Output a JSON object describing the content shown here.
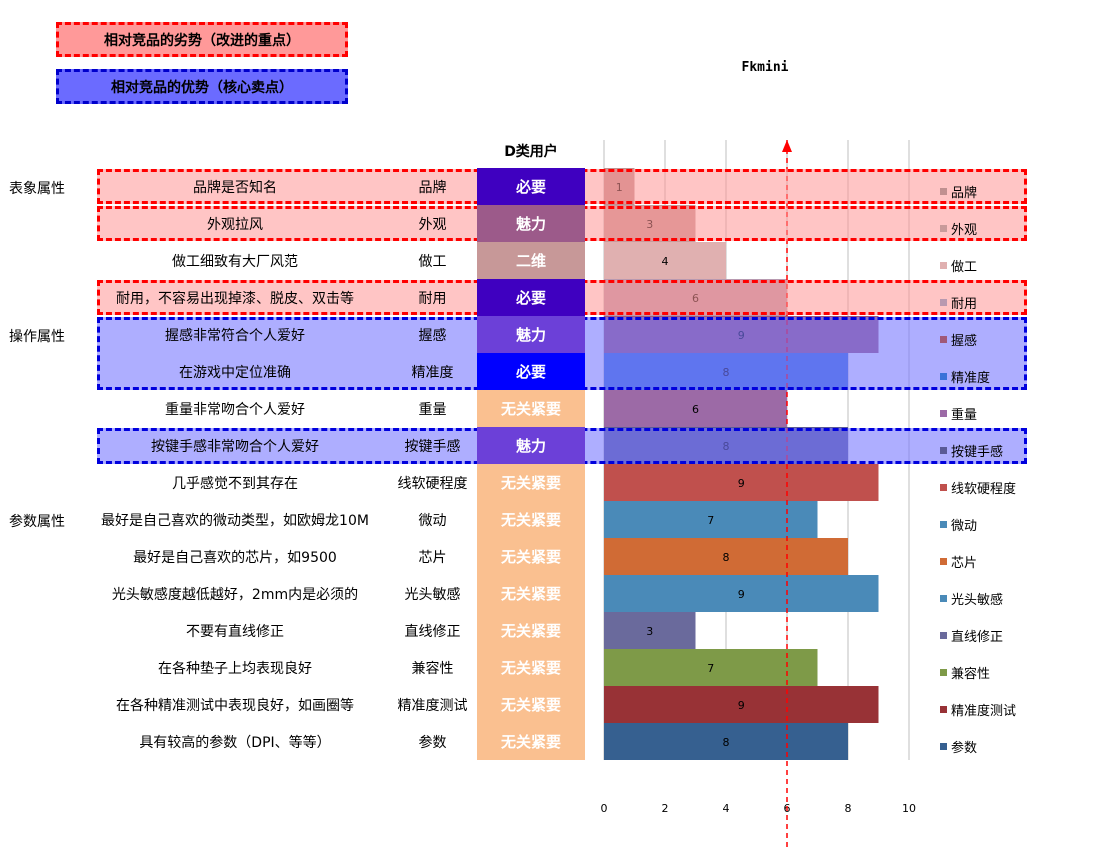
{
  "legend_boxes": {
    "weakness": "相对竞品的劣势（改进的重点）",
    "strength": "相对竞品的优势（核心卖点）"
  },
  "column_header": "D类用户",
  "categories_groups": [
    {
      "label": "表象属性",
      "row": 0
    },
    {
      "label": "操作属性",
      "row": 4
    },
    {
      "label": "参数属性",
      "row": 9
    }
  ],
  "rows": [
    {
      "desc": "品牌是否知名",
      "attr": "品牌",
      "kano": "必要",
      "kano_color": "#3f00c0"
    },
    {
      "desc": "外观拉风",
      "attr": "外观",
      "kano": "魅力",
      "kano_color": "#9c5a8a"
    },
    {
      "desc": "做工细致有大厂风范",
      "attr": "做工",
      "kano": "二维",
      "kano_color": "#c79898"
    },
    {
      "desc": "耐用，不容易出现掉漆、脱皮、双击等",
      "attr": "耐用",
      "kano": "必要",
      "kano_color": "#3f00c0"
    },
    {
      "desc": "握感非常符合个人爱好",
      "attr": "握感",
      "kano": "魅力",
      "kano_color": "#6c40d8"
    },
    {
      "desc": "在游戏中定位准确",
      "attr": "精准度",
      "kano": "必要",
      "kano_color": "#0000ff"
    },
    {
      "desc": "重量非常吻合个人爱好",
      "attr": "重量",
      "kano": "无关紧要",
      "kano_color": "#fac090"
    },
    {
      "desc": "按键手感非常吻合个人爱好",
      "attr": "按键手感",
      "kano": "魅力",
      "kano_color": "#6c40d8"
    },
    {
      "desc": "几乎感觉不到其存在",
      "attr": "线软硬程度",
      "kano": "无关紧要",
      "kano_color": "#fac090"
    },
    {
      "desc": "最好是自己喜欢的微动类型，如欧姆龙10M",
      "attr": "微动",
      "kano": "无关紧要",
      "kano_color": "#fac090"
    },
    {
      "desc": "最好是自己喜欢的芯片，如9500",
      "attr": "芯片",
      "kano": "无关紧要",
      "kano_color": "#fac090"
    },
    {
      "desc": "光头敏感度越低越好，2mm内是必须的",
      "attr": "光头敏感",
      "kano": "无关紧要",
      "kano_color": "#fac090"
    },
    {
      "desc": "不要有直线修正",
      "attr": "直线修正",
      "kano": "无关紧要",
      "kano_color": "#fac090"
    },
    {
      "desc": "在各种垫子上均表现良好",
      "attr": "兼容性",
      "kano": "无关紧要",
      "kano_color": "#fac090"
    },
    {
      "desc": "在各种精准测试中表现良好，如画圈等",
      "attr": "精准度测试",
      "kano": "无关紧要",
      "kano_color": "#fac090"
    },
    {
      "desc": "具有较高的参数（DPI、等等）",
      "attr": "参数",
      "kano": "无关紧要",
      "kano_color": "#fac090"
    }
  ],
  "highlight_rows": {
    "weakness": [
      0,
      1,
      3
    ],
    "strength_groups": [
      [
        4,
        5
      ],
      [
        7
      ]
    ]
  },
  "chart_data": {
    "type": "bar",
    "orientation": "horizontal",
    "title": "Fkmini",
    "categories": [
      "品牌",
      "外观",
      "做工",
      "耐用",
      "握感",
      "精准度",
      "重量",
      "按键手感",
      "线软硬程度",
      "微动",
      "芯片",
      "光头敏感",
      "直线修正",
      "兼容性",
      "精准度测试",
      "参数"
    ],
    "values": [
      1,
      3,
      4,
      6,
      9,
      8,
      6,
      8,
      9,
      7,
      8,
      9,
      3,
      7,
      9,
      8
    ],
    "colors": [
      "#c09090",
      "#c89a9a",
      "#e0b0b0",
      "#b899b0",
      "#a05878",
      "#3a72d8",
      "#9c6aa6",
      "#5a5a96",
      "#c0504d",
      "#4a8ab8",
      "#d06b35",
      "#4a8ab8",
      "#6a6a9c",
      "#7e9a48",
      "#983236",
      "#366090"
    ],
    "xlim": [
      0,
      10
    ],
    "xticks": [
      0,
      2,
      4,
      6,
      8,
      10
    ],
    "reference_line": 6,
    "grid": true,
    "legend_position": "right"
  }
}
